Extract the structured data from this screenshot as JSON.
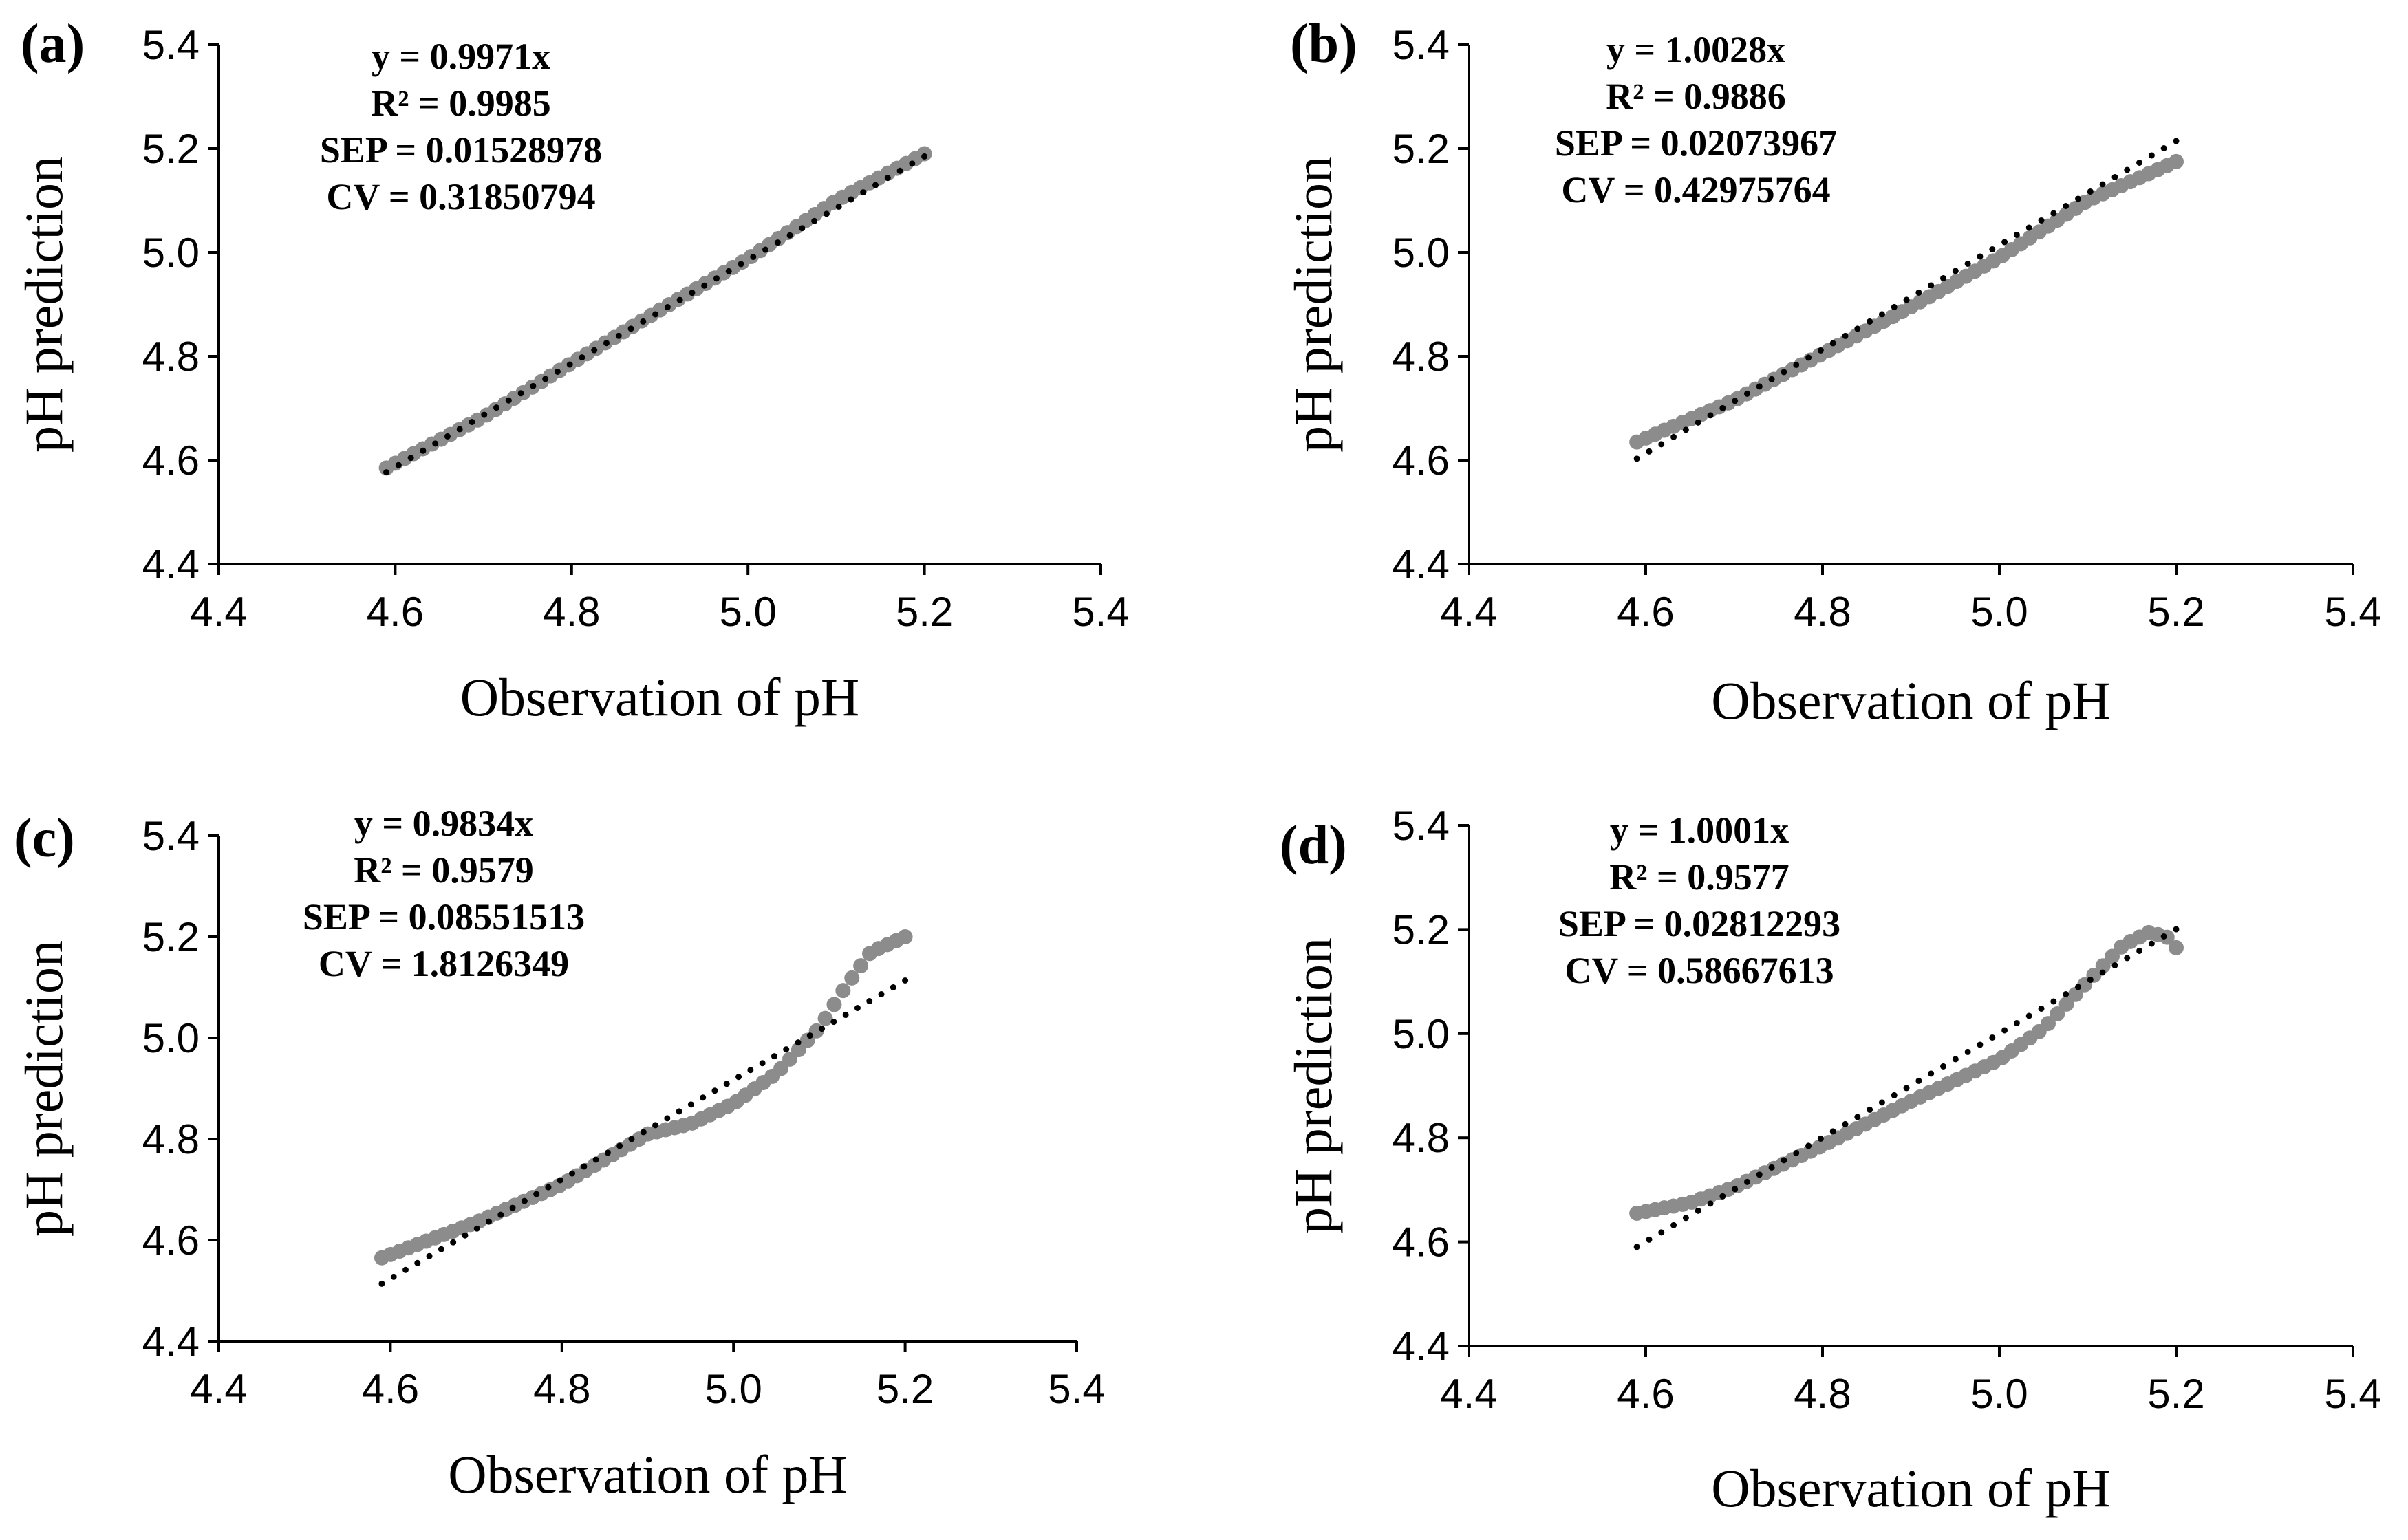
{
  "colors": {
    "points": "#8c8c8c",
    "trendline": "#000000",
    "axis": "#000000"
  },
  "chart_data": [
    {
      "panel": "(a)",
      "type": "scatter",
      "xlabel": "Observation of pH",
      "ylabel": "pH prediction",
      "xlim": [
        4.4,
        5.4
      ],
      "ylim": [
        4.4,
        5.4
      ],
      "xticks": [
        "4.4",
        "4.6",
        "4.8",
        "5.0",
        "5.2",
        "5.4"
      ],
      "yticks": [
        "4.4",
        "4.6",
        "4.8",
        "5.0",
        "5.2",
        "5.4"
      ],
      "stats": [
        "y = 0.9971x",
        "R² = 0.9985",
        "SEP = 0.01528978",
        "CV = 0.31850794"
      ],
      "trendline": {
        "slope": 0.9971,
        "x": [
          4.59,
          5.2
        ]
      },
      "series": [
        {
          "name": "prediction",
          "curve": [
            [
              4.59,
              4.585
            ],
            [
              4.7,
              4.683
            ],
            [
              4.8,
              4.787
            ],
            [
              4.9,
              4.889
            ],
            [
              5.0,
              4.988
            ],
            [
              5.1,
              5.1
            ],
            [
              5.2,
              5.19
            ]
          ],
          "n": 60
        }
      ]
    },
    {
      "panel": "(b)",
      "type": "scatter",
      "xlabel": "Observation of pH",
      "ylabel": "pH prediction",
      "xlim": [
        4.4,
        5.4
      ],
      "ylim": [
        4.4,
        5.4
      ],
      "xticks": [
        "4.4",
        "4.6",
        "4.8",
        "5.0",
        "5.2",
        "5.4"
      ],
      "yticks": [
        "4.4",
        "4.6",
        "4.8",
        "5.0",
        "5.2",
        "5.4"
      ],
      "stats": [
        "y = 1.0028x",
        "R² = 0.9886",
        "SEP = 0.02073967",
        "CV = 0.42975764"
      ],
      "trendline": {
        "slope": 1.0028,
        "x": [
          4.59,
          5.2
        ]
      },
      "series": [
        {
          "name": "prediction",
          "curve": [
            [
              4.59,
              4.635
            ],
            [
              4.7,
              4.715
            ],
            [
              4.8,
              4.805
            ],
            [
              4.9,
              4.895
            ],
            [
              5.0,
              4.99
            ],
            [
              5.1,
              5.1
            ],
            [
              5.2,
              5.175
            ]
          ],
          "n": 60
        }
      ]
    },
    {
      "panel": "(c)",
      "type": "scatter",
      "xlabel": "Observation of pH",
      "ylabel": "pH prediction",
      "xlim": [
        4.4,
        5.4
      ],
      "ylim": [
        4.4,
        5.4
      ],
      "xticks": [
        "4.4",
        "4.6",
        "4.8",
        "5.0",
        "5.2",
        "5.4"
      ],
      "yticks": [
        "4.4",
        "4.6",
        "4.8",
        "5.0",
        "5.2",
        "5.4"
      ],
      "stats": [
        "y = 0.9834x",
        "R² = 0.9579",
        "SEP = 0.08551513",
        "CV = 1.8126349"
      ],
      "trendline": {
        "slope": 0.9834,
        "x": [
          4.59,
          5.2
        ]
      },
      "series": [
        {
          "name": "prediction",
          "curve": [
            [
              4.59,
              4.565
            ],
            [
              4.7,
              4.635
            ],
            [
              4.8,
              4.71
            ],
            [
              4.9,
              4.81
            ],
            [
              4.95,
              4.83
            ],
            [
              5.0,
              4.87
            ],
            [
              5.05,
              4.93
            ],
            [
              5.1,
              5.02
            ],
            [
              5.13,
              5.1
            ],
            [
              5.16,
              5.17
            ],
            [
              5.2,
              5.2
            ]
          ],
          "n": 60
        }
      ]
    },
    {
      "panel": "(d)",
      "type": "scatter",
      "xlabel": "Observation of pH",
      "ylabel": "pH prediction",
      "xlim": [
        4.4,
        5.4
      ],
      "ylim": [
        4.4,
        5.4
      ],
      "xticks": [
        "4.4",
        "4.6",
        "4.8",
        "5.0",
        "5.2",
        "5.4"
      ],
      "yticks": [
        "4.4",
        "4.6",
        "4.8",
        "5.0",
        "5.2",
        "5.4"
      ],
      "stats": [
        "y = 1.0001x",
        "R² = 0.9577",
        "SEP = 0.02812293",
        "CV = 0.58667613"
      ],
      "trendline": {
        "slope": 1.0001,
        "x": [
          4.59,
          5.2
        ]
      },
      "series": [
        {
          "name": "prediction",
          "curve": [
            [
              4.59,
              4.655
            ],
            [
              4.65,
              4.675
            ],
            [
              4.7,
              4.705
            ],
            [
              4.8,
              4.785
            ],
            [
              4.9,
              4.87
            ],
            [
              5.0,
              4.95
            ],
            [
              5.05,
              5.01
            ],
            [
              5.1,
              5.1
            ],
            [
              5.14,
              5.17
            ],
            [
              5.17,
              5.195
            ],
            [
              5.19,
              5.185
            ],
            [
              5.2,
              5.165
            ]
          ],
          "n": 60
        }
      ]
    }
  ]
}
